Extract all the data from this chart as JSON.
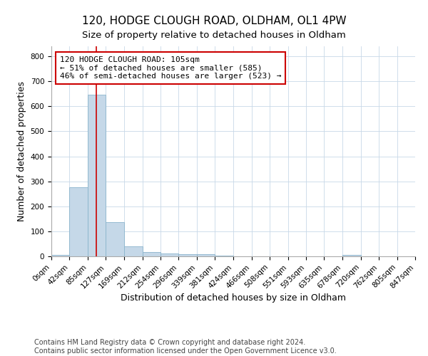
{
  "title_line1": "120, HODGE CLOUGH ROAD, OLDHAM, OL1 4PW",
  "title_line2": "Size of property relative to detached houses in Oldham",
  "xlabel": "Distribution of detached houses by size in Oldham",
  "ylabel": "Number of detached properties",
  "footer_line1": "Contains HM Land Registry data © Crown copyright and database right 2024.",
  "footer_line2": "Contains public sector information licensed under the Open Government Licence v3.0.",
  "bin_edges": [
    0,
    42,
    85,
    127,
    169,
    212,
    254,
    296,
    339,
    381,
    424,
    466,
    508,
    551,
    593,
    635,
    678,
    720,
    762,
    805,
    847
  ],
  "bar_heights": [
    5,
    275,
    645,
    138,
    40,
    18,
    11,
    8,
    8,
    4,
    1,
    1,
    0,
    0,
    0,
    0,
    5,
    0,
    1,
    0
  ],
  "bar_color": "#c5d8e8",
  "bar_edge_color": "#8ab4cc",
  "property_size": 105,
  "property_line_color": "#cc0000",
  "annotation_text": "120 HODGE CLOUGH ROAD: 105sqm\n← 51% of detached houses are smaller (585)\n46% of semi-detached houses are larger (523) →",
  "annotation_box_color": "#ffffff",
  "annotation_box_edge_color": "#cc0000",
  "ylim": [
    0,
    840
  ],
  "yticks": [
    0,
    100,
    200,
    300,
    400,
    500,
    600,
    700,
    800
  ],
  "background_color": "#ffffff",
  "grid_color": "#c8d8e8",
  "title_fontsize": 11,
  "subtitle_fontsize": 9.5,
  "label_fontsize": 9,
  "tick_fontsize": 7.5,
  "annotation_fontsize": 8,
  "footer_fontsize": 7
}
